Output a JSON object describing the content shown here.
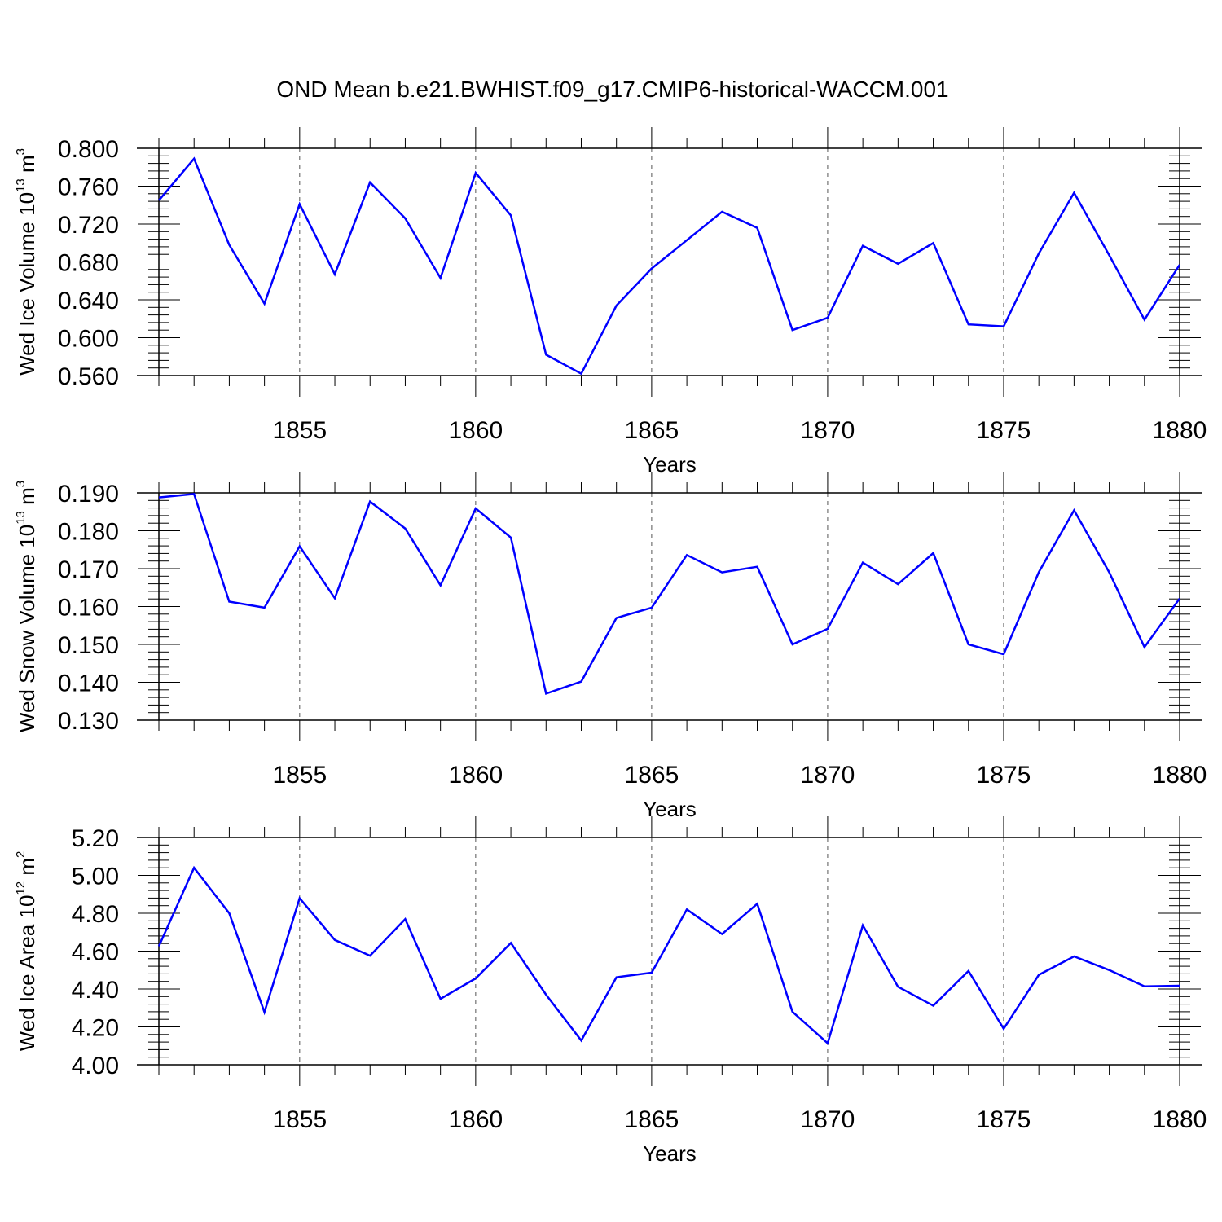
{
  "title": "OND Mean b.e21.BWHIST.f09_g17.CMIP6-historical-WACCM.001",
  "colors": {
    "series": "#0000ff",
    "axis": "#000000",
    "grid": "#555555"
  },
  "chart_data": [
    {
      "type": "line",
      "ylabel": {
        "main": "Wed Ice Volume 10",
        "sup": "13",
        "tail": " m",
        "unit_sup": "3"
      },
      "xlabel": "Years",
      "xlim": [
        1851,
        1880
      ],
      "ylim": [
        0.56,
        0.8
      ],
      "y_ticks": [
        "0.560",
        "0.600",
        "0.640",
        "0.680",
        "0.720",
        "0.760",
        "0.800"
      ],
      "x_ticks": [
        "1855",
        "1860",
        "1865",
        "1870",
        "1875",
        "1880"
      ],
      "grid": "vertical dashed at labeled years",
      "series": [
        {
          "x": [
            1851,
            1852,
            1853,
            1854,
            1855,
            1856,
            1857,
            1858,
            1859,
            1860,
            1861,
            1862,
            1863,
            1864,
            1865,
            1866,
            1867,
            1868,
            1869,
            1870,
            1871,
            1872,
            1873,
            1874,
            1875,
            1876,
            1877,
            1878,
            1879,
            1880
          ],
          "values": [
            0.745,
            0.789,
            0.698,
            0.636,
            0.741,
            0.667,
            0.764,
            0.726,
            0.663,
            0.774,
            0.729,
            0.582,
            0.562,
            0.634,
            0.673,
            0.703,
            0.733,
            0.716,
            0.608,
            0.621,
            0.697,
            0.678,
            0.7,
            0.614,
            0.612,
            0.689,
            0.753,
            0.687,
            0.619,
            0.677
          ]
        }
      ]
    },
    {
      "type": "line",
      "ylabel": {
        "main": "Wed Snow Volume 10",
        "sup": "13",
        "tail": " m",
        "unit_sup": "3"
      },
      "xlabel": "Years",
      "xlim": [
        1851,
        1880
      ],
      "ylim": [
        0.13,
        0.19
      ],
      "y_ticks": [
        "0.130",
        "0.140",
        "0.150",
        "0.160",
        "0.170",
        "0.180",
        "0.190"
      ],
      "x_ticks": [
        "1855",
        "1860",
        "1865",
        "1870",
        "1875",
        "1880"
      ],
      "grid": "vertical dashed at labeled years",
      "series": [
        {
          "x": [
            1851,
            1852,
            1853,
            1854,
            1855,
            1856,
            1857,
            1858,
            1859,
            1860,
            1861,
            1862,
            1863,
            1864,
            1865,
            1866,
            1867,
            1868,
            1869,
            1870,
            1871,
            1872,
            1873,
            1874,
            1875,
            1876,
            1877,
            1878,
            1879,
            1880
          ],
          "values": [
            0.1888,
            0.1897,
            0.1613,
            0.1597,
            0.1759,
            0.1622,
            0.1877,
            0.1806,
            0.1656,
            0.1859,
            0.1782,
            0.137,
            0.1402,
            0.157,
            0.1597,
            0.1736,
            0.169,
            0.1705,
            0.15,
            0.1541,
            0.1716,
            0.1659,
            0.1741,
            0.15,
            0.1474,
            0.1691,
            0.1854,
            0.169,
            0.1493,
            0.1621
          ]
        }
      ]
    },
    {
      "type": "line",
      "ylabel": {
        "main": "Wed Ice Area 10",
        "sup": "12",
        "tail": " m",
        "unit_sup": "2"
      },
      "xlabel": "Years",
      "xlim": [
        1851,
        1880
      ],
      "ylim": [
        4.0,
        5.2
      ],
      "y_ticks": [
        "4.00",
        "4.20",
        "4.40",
        "4.60",
        "4.80",
        "5.00",
        "5.20"
      ],
      "x_ticks": [
        "1855",
        "1860",
        "1865",
        "1870",
        "1875",
        "1880"
      ],
      "grid": "vertical dashed at labeled years",
      "series": [
        {
          "x": [
            1851,
            1852,
            1853,
            1854,
            1855,
            1856,
            1857,
            1858,
            1859,
            1860,
            1861,
            1862,
            1863,
            1864,
            1865,
            1866,
            1867,
            1868,
            1869,
            1870,
            1871,
            1872,
            1873,
            1874,
            1875,
            1876,
            1877,
            1878,
            1879,
            1880
          ],
          "values": [
            4.626,
            5.04,
            4.8,
            4.278,
            4.879,
            4.659,
            4.576,
            4.769,
            4.348,
            4.456,
            4.643,
            4.37,
            4.128,
            4.462,
            4.486,
            4.82,
            4.69,
            4.85,
            4.28,
            4.114,
            4.736,
            4.412,
            4.312,
            4.495,
            4.19,
            4.475,
            4.572,
            4.5,
            4.414,
            4.417
          ]
        }
      ]
    }
  ]
}
